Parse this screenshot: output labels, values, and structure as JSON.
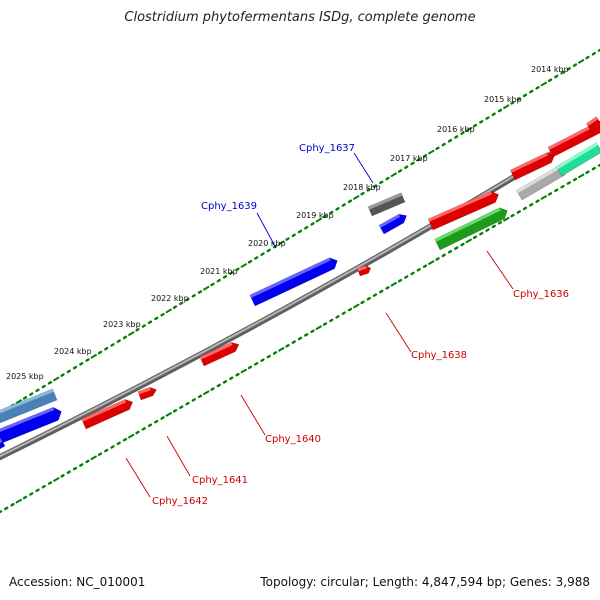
{
  "title": "Clostridium phytofermentans ISDg, complete genome",
  "footer": {
    "accession": "Accession: NC_010001",
    "summary": "Topology: circular; Length: 4,847,594 bp; Genes: 3,988"
  },
  "colors": {
    "forward_genes": "#ff0000",
    "reverse_genes": "#0000ff",
    "backbone": "#808080",
    "tick_marks": "#008000",
    "forward_labels": "#cc0000",
    "reverse_labels": "#0000cc"
  },
  "scale": {
    "unit": "kbp",
    "labels": [
      "2014 kbp",
      "2015 kbp",
      "2016 kbp",
      "2017 kbp",
      "2018 kbp",
      "2019 kbp",
      "2020 kbp",
      "2021 kbp",
      "2022 kbp",
      "2023 kbp",
      "2024 kbp",
      "2025 kbp"
    ]
  },
  "gene_labels": [
    {
      "name": "Cphy_1637",
      "strand": "reverse"
    },
    {
      "name": "Cphy_1639",
      "strand": "reverse"
    },
    {
      "name": "Cphy_1636",
      "strand": "forward"
    },
    {
      "name": "Cphy_1638",
      "strand": "forward"
    },
    {
      "name": "Cphy_1640",
      "strand": "forward"
    },
    {
      "name": "Cphy_1641",
      "strand": "forward"
    },
    {
      "name": "Cphy_1642",
      "strand": "forward"
    }
  ]
}
